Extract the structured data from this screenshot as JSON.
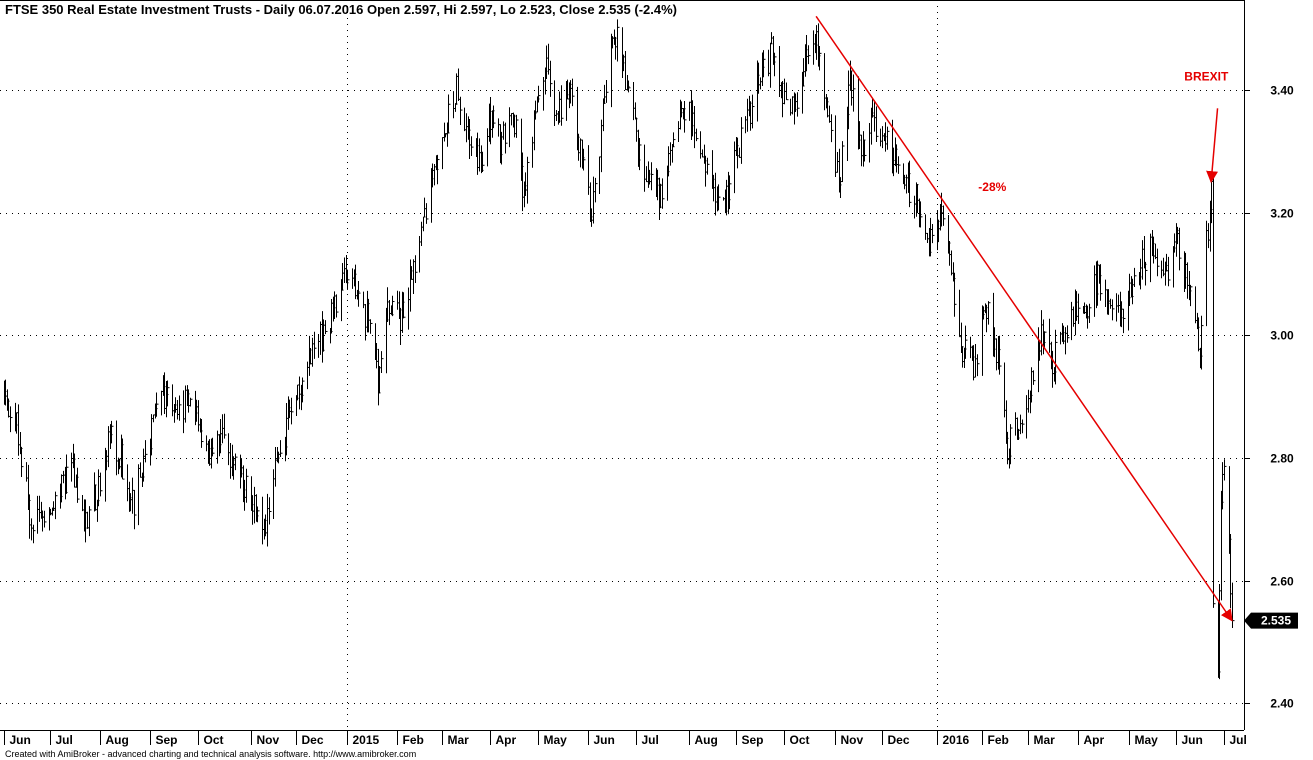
{
  "chart_data": {
    "type": "ohlc",
    "title": "FTSE 350 Real Estate Investment Trusts - Daily 06.07.2016 Open 2.597, Hi 2.597, Lo 2.523, Close 2.535 (-2.4%)",
    "footer": "Created with AmiBroker - advanced charting and technical analysis software. http://www.amibroker.com",
    "x_axis": {
      "type": "time",
      "start": "2014-06-01",
      "end": "2016-07-06",
      "tick_labels": [
        {
          "date": "2014-06-02",
          "label": "Jun"
        },
        {
          "date": "2014-07-01",
          "label": "Jul"
        },
        {
          "date": "2014-08-01",
          "label": "Aug"
        },
        {
          "date": "2014-09-01",
          "label": "Sep"
        },
        {
          "date": "2014-10-01",
          "label": "Oct"
        },
        {
          "date": "2014-11-03",
          "label": "Nov"
        },
        {
          "date": "2014-12-01",
          "label": "Dec"
        },
        {
          "date": "2015-01-02",
          "label": "2015"
        },
        {
          "date": "2015-02-02",
          "label": "Feb"
        },
        {
          "date": "2015-03-02",
          "label": "Mar"
        },
        {
          "date": "2015-04-01",
          "label": "Apr"
        },
        {
          "date": "2015-05-01",
          "label": "May"
        },
        {
          "date": "2015-06-01",
          "label": "Jun"
        },
        {
          "date": "2015-07-01",
          "label": "Jul"
        },
        {
          "date": "2015-08-03",
          "label": "Aug"
        },
        {
          "date": "2015-09-01",
          "label": "Sep"
        },
        {
          "date": "2015-10-01",
          "label": "Oct"
        },
        {
          "date": "2015-11-02",
          "label": "Nov"
        },
        {
          "date": "2015-12-01",
          "label": "Dec"
        },
        {
          "date": "2016-01-04",
          "label": "2016"
        },
        {
          "date": "2016-02-01",
          "label": "Feb"
        },
        {
          "date": "2016-03-01",
          "label": "Mar"
        },
        {
          "date": "2016-04-01",
          "label": "Apr"
        },
        {
          "date": "2016-05-03",
          "label": "May"
        },
        {
          "date": "2016-06-01",
          "label": "Jun"
        },
        {
          "date": "2016-07-01",
          "label": "Jul"
        }
      ],
      "grid_dates": [
        "2015-01-02",
        "2016-01-04"
      ]
    },
    "y_axis": {
      "ylim": [
        2.36,
        3.54
      ],
      "ticks": [
        {
          "value": 2.4,
          "label": "2.40"
        },
        {
          "value": 2.6,
          "label": "2.60"
        },
        {
          "value": 2.8,
          "label": "2.80"
        },
        {
          "value": 3.0,
          "label": "3.00"
        },
        {
          "value": 3.2,
          "label": "3.20"
        },
        {
          "value": 3.4,
          "label": "3.40"
        }
      ],
      "grid": true
    },
    "series": [
      {
        "close_path": [
          [
            "2014-06-02",
            2.9
          ],
          [
            "2014-06-10",
            2.85
          ],
          [
            "2014-06-18",
            2.71
          ],
          [
            "2014-06-26",
            2.69
          ],
          [
            "2014-07-04",
            2.72
          ],
          [
            "2014-07-14",
            2.79
          ],
          [
            "2014-07-22",
            2.7
          ],
          [
            "2014-07-31",
            2.75
          ],
          [
            "2014-08-07",
            2.85
          ],
          [
            "2014-08-15",
            2.79
          ],
          [
            "2014-08-22",
            2.73
          ],
          [
            "2014-08-29",
            2.8
          ],
          [
            "2014-09-05",
            2.89
          ],
          [
            "2014-09-12",
            2.91
          ],
          [
            "2014-09-19",
            2.88
          ],
          [
            "2014-09-26",
            2.9
          ],
          [
            "2014-10-03",
            2.85
          ],
          [
            "2014-10-10",
            2.8
          ],
          [
            "2014-10-17",
            2.84
          ],
          [
            "2014-10-24",
            2.78
          ],
          [
            "2014-10-31",
            2.75
          ],
          [
            "2014-11-07",
            2.72
          ],
          [
            "2014-11-12",
            2.68
          ],
          [
            "2014-11-19",
            2.8
          ],
          [
            "2014-11-26",
            2.86
          ],
          [
            "2014-12-03",
            2.92
          ],
          [
            "2014-12-10",
            2.96
          ],
          [
            "2014-12-17",
            3.0
          ],
          [
            "2014-12-24",
            3.04
          ],
          [
            "2015-01-02",
            3.1
          ],
          [
            "2015-01-09",
            3.07
          ],
          [
            "2015-01-16",
            3.01
          ],
          [
            "2015-01-21",
            2.93
          ],
          [
            "2015-01-28",
            3.06
          ],
          [
            "2015-02-04",
            3.03
          ],
          [
            "2015-02-11",
            3.09
          ],
          [
            "2015-02-18",
            3.18
          ],
          [
            "2015-02-25",
            3.28
          ],
          [
            "2015-03-04",
            3.34
          ],
          [
            "2015-03-11",
            3.4
          ],
          [
            "2015-03-18",
            3.32
          ],
          [
            "2015-03-25",
            3.28
          ],
          [
            "2015-04-01",
            3.35
          ],
          [
            "2015-04-08",
            3.31
          ],
          [
            "2015-04-15",
            3.37
          ],
          [
            "2015-04-22",
            3.22
          ],
          [
            "2015-04-29",
            3.38
          ],
          [
            "2015-05-06",
            3.45
          ],
          [
            "2015-05-13",
            3.35
          ],
          [
            "2015-05-20",
            3.42
          ],
          [
            "2015-05-27",
            3.3
          ],
          [
            "2015-06-03",
            3.2
          ],
          [
            "2015-06-10",
            3.36
          ],
          [
            "2015-06-17",
            3.5
          ],
          [
            "2015-06-24",
            3.42
          ],
          [
            "2015-07-01",
            3.32
          ],
          [
            "2015-07-08",
            3.25
          ],
          [
            "2015-07-15",
            3.23
          ],
          [
            "2015-07-22",
            3.29
          ],
          [
            "2015-07-29",
            3.38
          ],
          [
            "2015-08-05",
            3.35
          ],
          [
            "2015-08-12",
            3.29
          ],
          [
            "2015-08-19",
            3.24
          ],
          [
            "2015-08-26",
            3.22
          ],
          [
            "2015-09-02",
            3.3
          ],
          [
            "2015-09-09",
            3.36
          ],
          [
            "2015-09-16",
            3.43
          ],
          [
            "2015-09-23",
            3.46
          ],
          [
            "2015-09-30",
            3.4
          ],
          [
            "2015-10-07",
            3.37
          ],
          [
            "2015-10-14",
            3.45
          ],
          [
            "2015-10-21",
            3.5
          ],
          [
            "2015-10-28",
            3.36
          ],
          [
            "2015-11-04",
            3.25
          ],
          [
            "2015-11-11",
            3.42
          ],
          [
            "2015-11-18",
            3.3
          ],
          [
            "2015-11-25",
            3.35
          ],
          [
            "2015-12-02",
            3.32
          ],
          [
            "2015-12-09",
            3.28
          ],
          [
            "2015-12-16",
            3.25
          ],
          [
            "2015-12-23",
            3.22
          ],
          [
            "2015-12-30",
            3.16
          ],
          [
            "2016-01-06",
            3.2
          ],
          [
            "2016-01-13",
            3.1
          ],
          [
            "2016-01-20",
            2.98
          ],
          [
            "2016-01-27",
            2.95
          ],
          [
            "2016-02-03",
            3.05
          ],
          [
            "2016-02-10",
            2.98
          ],
          [
            "2016-02-17",
            2.82
          ],
          [
            "2016-02-24",
            2.85
          ],
          [
            "2016-03-02",
            2.92
          ],
          [
            "2016-03-09",
            3.0
          ],
          [
            "2016-03-16",
            2.95
          ],
          [
            "2016-03-23",
            3.0
          ],
          [
            "2016-03-30",
            3.05
          ],
          [
            "2016-04-06",
            3.03
          ],
          [
            "2016-04-13",
            3.1
          ],
          [
            "2016-04-20",
            3.06
          ],
          [
            "2016-04-27",
            3.03
          ],
          [
            "2016-05-04",
            3.08
          ],
          [
            "2016-05-11",
            3.12
          ],
          [
            "2016-05-18",
            3.15
          ],
          [
            "2016-05-25",
            3.1
          ],
          [
            "2016-06-01",
            3.15
          ],
          [
            "2016-06-08",
            3.1
          ],
          [
            "2016-06-13",
            3.0
          ],
          [
            "2016-06-16",
            2.98
          ],
          [
            "2016-06-20",
            3.15
          ],
          [
            "2016-06-23",
            3.24
          ],
          [
            "2016-06-24",
            2.55
          ],
          [
            "2016-06-27",
            2.45
          ],
          [
            "2016-06-29",
            2.75
          ],
          [
            "2016-07-01",
            2.8
          ],
          [
            "2016-07-04",
            2.65
          ],
          [
            "2016-07-05",
            2.6
          ],
          [
            "2016-07-06",
            2.535
          ]
        ]
      }
    ],
    "last_value": {
      "value": 2.535,
      "label": "2.535"
    },
    "annotations": [
      {
        "type": "trendline",
        "from": {
          "date": "2015-10-21",
          "value": 3.52
        },
        "to": {
          "date": "2016-07-06",
          "value": 2.535
        },
        "label": "-28%",
        "label_anchor": {
          "date": "2016-01-30",
          "value": 3.235
        }
      },
      {
        "type": "arrow-label",
        "label": "BREXIT",
        "label_anchor": {
          "date": "2016-06-20",
          "value": 3.415
        },
        "arrow_from": {
          "date": "2016-06-27",
          "value": 3.37
        },
        "arrow_to": {
          "date": "2016-06-23",
          "value": 3.25
        }
      }
    ],
    "colors": {
      "bars": "#000000",
      "annotation": "#e50000",
      "grid": "#000000",
      "last_label_bg": "#000000"
    }
  }
}
